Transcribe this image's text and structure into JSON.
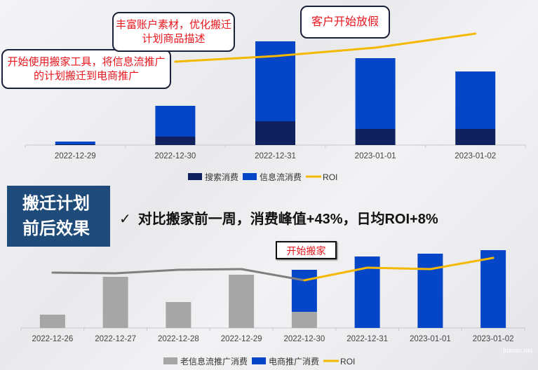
{
  "colors": {
    "search": "#0f225e",
    "feed": "#0546c8",
    "roi": "#f5b800",
    "old_feed": "#a6a6a6",
    "old_roi": "#7f7f7f",
    "ecom": "#0546c8",
    "callout_text": "#e8141c",
    "title_bg": "#1f4b7a"
  },
  "annotations": {
    "callout1": "开始使用搬家工具，将信息流推广的计划搬迁到电商推广",
    "callout2": "丰富账户素材，优化搬迁计划商品描述",
    "callout3": "客户开始放假",
    "section_title_line1": "搬迁计划",
    "section_title_line2": "前后效果",
    "check_icon": "✓",
    "headline": "对比搬家前一周，消费峰值+43%，日均ROI+8%",
    "move_tag": "开始搬家",
    "watermark": "juxuan.net"
  },
  "chart_data": [
    {
      "type": "bar",
      "stacked": true,
      "categories": [
        "2022-12-29",
        "2022-12-30",
        "2022-12-31",
        "2023-01-01",
        "2023-01-02"
      ],
      "series": [
        {
          "name": "搜索消费",
          "type": "bar",
          "values": [
            1,
            12,
            34,
            23,
            23
          ]
        },
        {
          "name": "信息流消费",
          "type": "bar",
          "values": [
            4,
            44,
            114,
            101,
            82
          ]
        },
        {
          "name": "ROI",
          "type": "line",
          "values": [
            null,
            119,
            127,
            139,
            159
          ]
        }
      ],
      "ylim": [
        0,
        160
      ],
      "grid": false,
      "legend": "bottom"
    },
    {
      "type": "bar",
      "stacked": true,
      "categories": [
        "2022-12-26",
        "2022-12-27",
        "2022-12-28",
        "2022-12-29",
        "2022-12-30",
        "2022-12-31",
        "2023-01-01",
        "2023-01-02"
      ],
      "series": [
        {
          "name": "老信息流推广消费",
          "type": "bar",
          "values": [
            19,
            73,
            37,
            76,
            23,
            0,
            0,
            0
          ]
        },
        {
          "name": "电商推广消费",
          "type": "bar",
          "values": [
            0,
            0,
            0,
            0,
            60,
            102,
            106,
            111
          ]
        },
        {
          "name": "ROI",
          "type": "line",
          "values": [
            79,
            78,
            83,
            84,
            68,
            86,
            84,
            100
          ]
        }
      ],
      "ylim": [
        0,
        120
      ],
      "grid": false,
      "legend": "bottom"
    }
  ]
}
